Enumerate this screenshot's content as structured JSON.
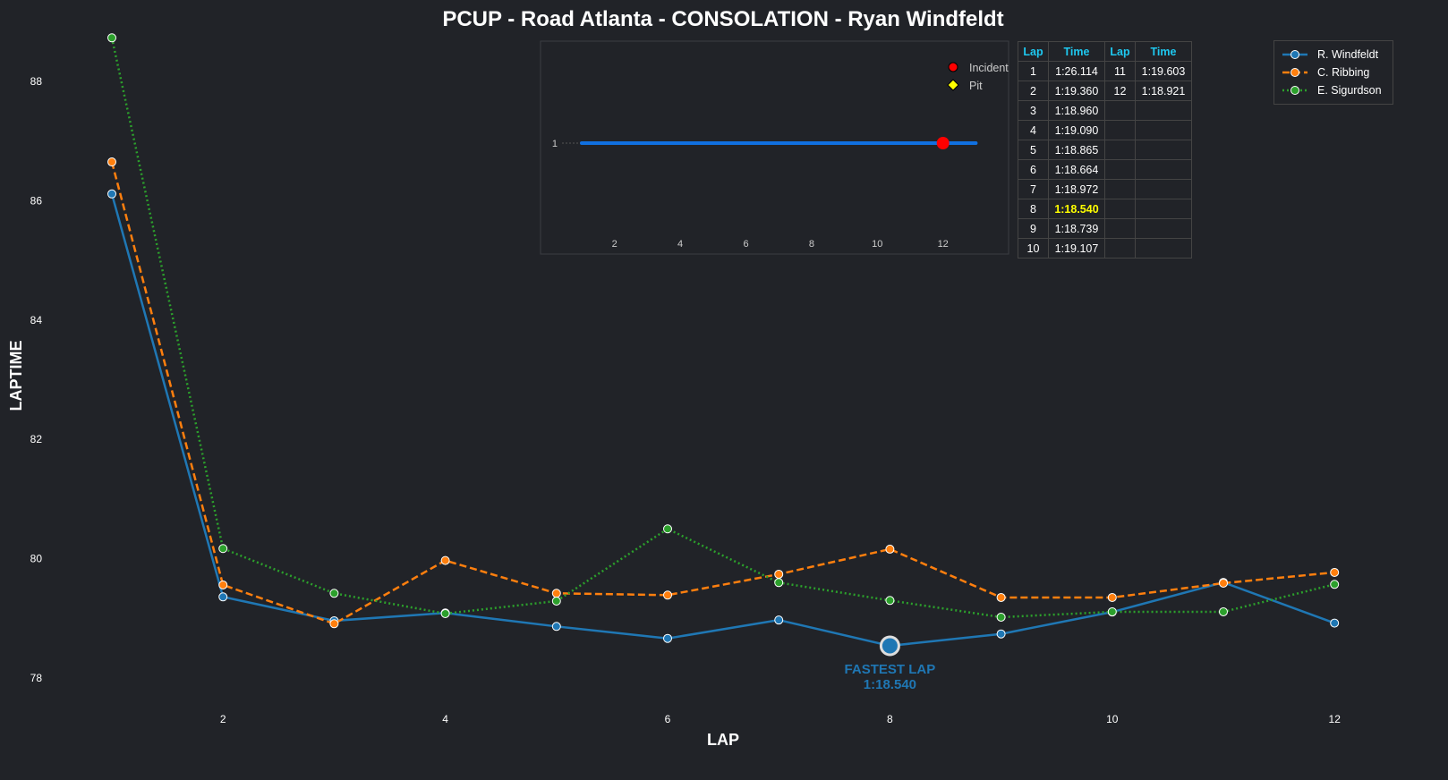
{
  "chart_data": [
    {
      "type": "line",
      "title": "PCUP - Road Atlanta - CONSOLATION - Ryan Windfeldt",
      "xlabel": "LAP",
      "ylabel": "LAPTIME",
      "x": [
        1,
        2,
        3,
        4,
        5,
        6,
        7,
        8,
        9,
        10,
        11,
        12
      ],
      "xticks": [
        "2",
        "4",
        "6",
        "8",
        "10",
        "12"
      ],
      "yticks": [
        "78",
        "80",
        "82",
        "84",
        "86",
        "88"
      ],
      "ylim": [
        77.5,
        88.9
      ],
      "grid": false,
      "legend": "top-right",
      "series": [
        {
          "name": "R. Windfeldt",
          "color": "#1f77b4",
          "style": "solid",
          "values": [
            86.114,
            79.36,
            78.96,
            79.09,
            78.865,
            78.664,
            78.972,
            78.54,
            78.739,
            79.107,
            79.603,
            78.921
          ]
        },
        {
          "name": "C. Ribbing",
          "color": "#ff7f0e",
          "style": "dashed",
          "values": [
            86.65,
            79.56,
            78.91,
            79.97,
            79.42,
            79.39,
            79.74,
            80.16,
            79.35,
            79.35,
            79.59,
            79.77
          ]
        },
        {
          "name": "E. Sigurdson",
          "color": "#2ca02c",
          "style": "dotted",
          "values": [
            88.73,
            80.17,
            79.42,
            79.08,
            79.29,
            80.5,
            79.6,
            79.3,
            79.02,
            79.11,
            79.11,
            79.57
          ]
        }
      ],
      "annotation": {
        "lap": 8,
        "value": 78.54,
        "line1": "FASTEST LAP",
        "line2": "1:18.540"
      }
    },
    {
      "type": "line",
      "title": "",
      "position_label": "1",
      "xticks": [
        "2",
        "4",
        "6",
        "8",
        "10",
        "12"
      ],
      "position_line": {
        "from_lap": 1,
        "to_lap": 13,
        "color": "#1070e0"
      },
      "events": [
        {
          "type": "Incident",
          "lap": 12
        }
      ],
      "legend": [
        {
          "label": "Incident",
          "color": "#ff0000",
          "marker": "circle"
        },
        {
          "label": "Pit",
          "color": "#ffff00",
          "marker": "diamond"
        }
      ]
    }
  ],
  "lap_table": {
    "headers": [
      "Lap",
      "Time",
      "Lap",
      "Time"
    ],
    "rows": [
      [
        "1",
        "1:26.114",
        "11",
        "1:19.603"
      ],
      [
        "2",
        "1:19.360",
        "12",
        "1:18.921"
      ],
      [
        "3",
        "1:18.960",
        "",
        ""
      ],
      [
        "4",
        "1:19.090",
        "",
        ""
      ],
      [
        "5",
        "1:18.865",
        "",
        ""
      ],
      [
        "6",
        "1:18.664",
        "",
        ""
      ],
      [
        "7",
        "1:18.972",
        "",
        ""
      ],
      [
        "8",
        "1:18.540",
        "",
        ""
      ],
      [
        "9",
        "1:18.739",
        "",
        ""
      ],
      [
        "10",
        "1:19.107",
        "",
        ""
      ]
    ],
    "best_lap": "8"
  }
}
